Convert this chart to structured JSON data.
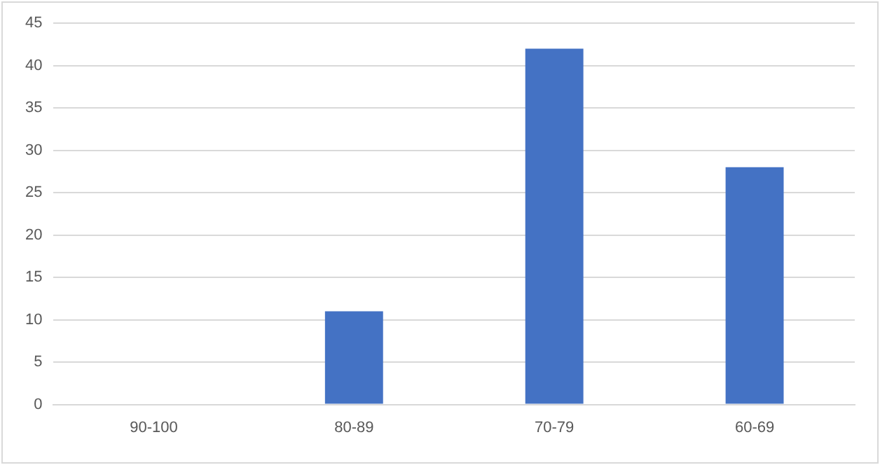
{
  "chart_data": {
    "type": "bar",
    "categories": [
      "90-100",
      "80-89",
      "70-79",
      "60-69"
    ],
    "values": [
      0,
      11,
      42,
      28
    ],
    "color": "#4472c4",
    "ylim": [
      0,
      45
    ],
    "yticks": [
      0,
      5,
      10,
      15,
      20,
      25,
      30,
      35,
      40,
      45
    ],
    "grid": "y",
    "legend": false
  }
}
